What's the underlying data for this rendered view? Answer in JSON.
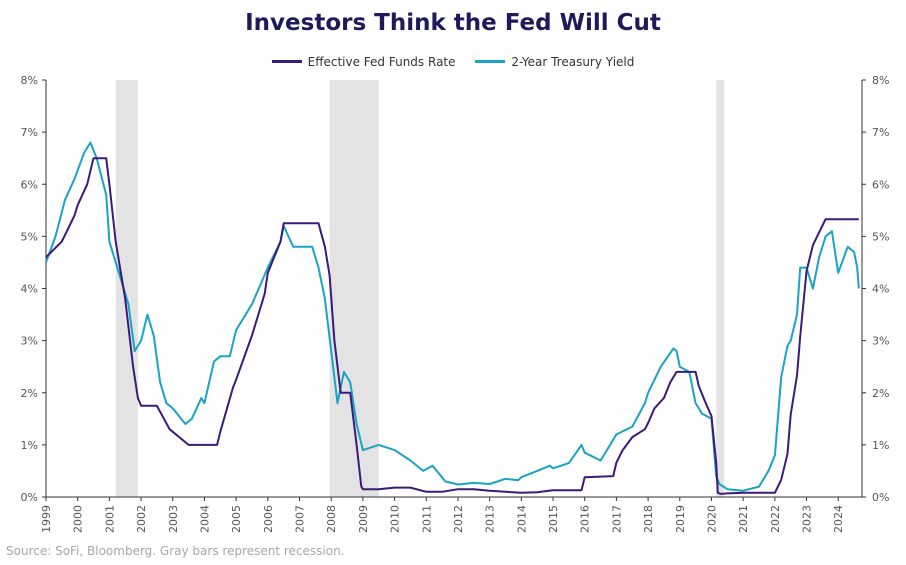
{
  "chart_data": {
    "type": "line",
    "title": "Investors Think the Fed Will Cut",
    "xlabel": "",
    "ylabel": "",
    "xlim": [
      1999.0,
      2024.75
    ],
    "ylim": [
      0,
      8
    ],
    "grid": false,
    "legend_position": "top-center",
    "y_ticks": [
      "0%",
      "1%",
      "2%",
      "3%",
      "4%",
      "5%",
      "6%",
      "7%",
      "8%"
    ],
    "x_ticks": [
      "1999",
      "2000",
      "2001",
      "2002",
      "2003",
      "2004",
      "2005",
      "2006",
      "2007",
      "2008",
      "2009",
      "2010",
      "2011",
      "2012",
      "2013",
      "2014",
      "2015",
      "2016",
      "2017",
      "2018",
      "2019",
      "2020",
      "2021",
      "2022",
      "2023",
      "2024"
    ],
    "recessions": [
      {
        "start": 2001.2,
        "end": 2001.9
      },
      {
        "start": 2007.95,
        "end": 2009.5
      },
      {
        "start": 2020.15,
        "end": 2020.4
      }
    ],
    "series": [
      {
        "name": "Effective Fed Funds Rate",
        "color": "#3b1a7a",
        "x": [
          1999.0,
          1999.5,
          1999.9,
          2000.0,
          2000.3,
          2000.5,
          2000.9,
          2001.0,
          2001.2,
          2001.5,
          2001.75,
          2001.9,
          2002.0,
          2002.5,
          2002.9,
          2003.0,
          2003.5,
          2003.9,
          2004.0,
          2004.4,
          2004.5,
          2004.9,
          2005.0,
          2005.5,
          2005.9,
          2006.0,
          2006.4,
          2006.5,
          2007.0,
          2007.6,
          2007.8,
          2007.95,
          2008.1,
          2008.3,
          2008.6,
          2008.8,
          2008.95,
          2009.0,
          2009.5,
          2010.0,
          2010.5,
          2011.0,
          2011.5,
          2012.0,
          2012.5,
          2013.0,
          2013.5,
          2014.0,
          2014.5,
          2015.0,
          2015.9,
          2016.0,
          2016.9,
          2017.0,
          2017.2,
          2017.5,
          2017.9,
          2018.0,
          2018.2,
          2018.5,
          2018.7,
          2018.9,
          2019.0,
          2019.5,
          2019.6,
          2019.8,
          2020.0,
          2020.15,
          2020.2,
          2020.3,
          2020.5,
          2021.0,
          2021.5,
          2022.0,
          2022.2,
          2022.4,
          2022.5,
          2022.7,
          2022.8,
          2023.0,
          2023.2,
          2023.4,
          2023.6,
          2024.0,
          2024.5,
          2024.65
        ],
        "values": [
          4.6,
          4.9,
          5.4,
          5.6,
          6.0,
          6.5,
          6.5,
          6.0,
          4.9,
          3.8,
          2.5,
          1.9,
          1.75,
          1.75,
          1.3,
          1.25,
          1.0,
          1.0,
          1.0,
          1.0,
          1.25,
          2.1,
          2.25,
          3.1,
          3.9,
          4.3,
          4.9,
          5.25,
          5.25,
          5.25,
          4.8,
          4.25,
          3.0,
          2.0,
          2.0,
          1.0,
          0.2,
          0.15,
          0.15,
          0.18,
          0.18,
          0.1,
          0.1,
          0.15,
          0.15,
          0.12,
          0.1,
          0.08,
          0.09,
          0.13,
          0.13,
          0.38,
          0.4,
          0.66,
          0.9,
          1.15,
          1.3,
          1.42,
          1.7,
          1.9,
          2.2,
          2.4,
          2.4,
          2.4,
          2.13,
          1.83,
          1.55,
          0.65,
          0.08,
          0.06,
          0.07,
          0.08,
          0.08,
          0.08,
          0.33,
          0.83,
          1.58,
          2.33,
          3.08,
          4.33,
          4.83,
          5.08,
          5.33,
          5.33,
          5.33,
          5.33
        ]
      },
      {
        "name": "2-Year Treasury Yield",
        "color": "#1aa3c4",
        "x": [
          1999.0,
          1999.3,
          1999.6,
          1999.9,
          2000.2,
          2000.4,
          2000.6,
          2000.9,
          2001.0,
          2001.3,
          2001.6,
          2001.8,
          2002.0,
          2002.2,
          2002.4,
          2002.6,
          2002.8,
          2003.0,
          2003.4,
          2003.6,
          2003.9,
          2004.0,
          2004.3,
          2004.5,
          2004.8,
          2005.0,
          2005.5,
          2006.0,
          2006.4,
          2006.5,
          2006.8,
          2007.0,
          2007.4,
          2007.6,
          2007.8,
          2008.0,
          2008.2,
          2008.4,
          2008.6,
          2008.8,
          2009.0,
          2009.5,
          2010.0,
          2010.5,
          2010.9,
          2011.2,
          2011.6,
          2012.0,
          2012.5,
          2013.0,
          2013.5,
          2013.9,
          2014.0,
          2014.5,
          2014.9,
          2015.0,
          2015.5,
          2015.9,
          2016.0,
          2016.5,
          2016.9,
          2017.0,
          2017.5,
          2017.9,
          2018.0,
          2018.4,
          2018.8,
          2018.9,
          2019.0,
          2019.3,
          2019.5,
          2019.7,
          2020.0,
          2020.15,
          2020.25,
          2020.5,
          2021.0,
          2021.5,
          2021.8,
          2022.0,
          2022.2,
          2022.4,
          2022.5,
          2022.7,
          2022.8,
          2023.0,
          2023.2,
          2023.4,
          2023.6,
          2023.8,
          2024.0,
          2024.3,
          2024.5,
          2024.6,
          2024.65
        ],
        "values": [
          4.5,
          5.0,
          5.7,
          6.1,
          6.6,
          6.8,
          6.5,
          5.8,
          4.9,
          4.3,
          3.7,
          2.8,
          3.0,
          3.5,
          3.1,
          2.2,
          1.8,
          1.7,
          1.4,
          1.5,
          1.9,
          1.8,
          2.6,
          2.7,
          2.7,
          3.2,
          3.7,
          4.4,
          4.9,
          5.2,
          4.8,
          4.8,
          4.8,
          4.4,
          3.8,
          2.8,
          1.8,
          2.4,
          2.2,
          1.4,
          0.9,
          1.0,
          0.9,
          0.7,
          0.5,
          0.6,
          0.3,
          0.24,
          0.27,
          0.25,
          0.35,
          0.32,
          0.38,
          0.5,
          0.6,
          0.55,
          0.65,
          1.0,
          0.85,
          0.7,
          1.1,
          1.2,
          1.35,
          1.8,
          2.0,
          2.5,
          2.85,
          2.8,
          2.5,
          2.4,
          1.8,
          1.6,
          1.5,
          0.4,
          0.25,
          0.15,
          0.12,
          0.2,
          0.5,
          0.8,
          2.3,
          2.9,
          3.0,
          3.5,
          4.4,
          4.4,
          4.0,
          4.6,
          5.0,
          5.1,
          4.3,
          4.8,
          4.7,
          4.4,
          4.0
        ]
      }
    ]
  },
  "source_note": "Source: SoFi, Bloomberg. Gray bars represent recession."
}
